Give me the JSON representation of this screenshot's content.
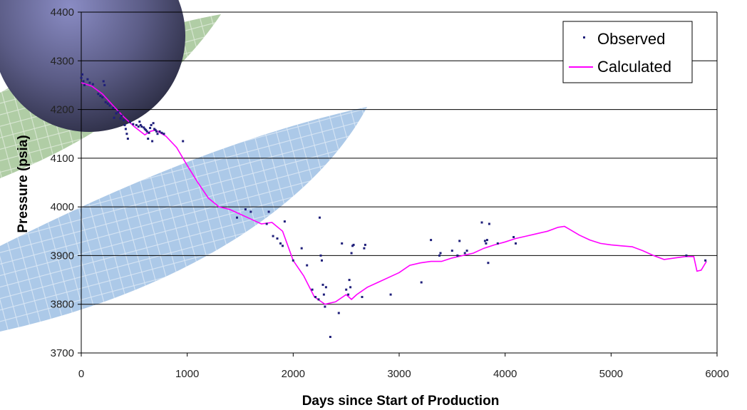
{
  "chart_data": {
    "type": "scatter",
    "title": "",
    "xlabel": "Days since Start of Production",
    "ylabel": "Pressure (psia)",
    "xlim": [
      0,
      6000
    ],
    "ylim": [
      3700,
      4400
    ],
    "xticks": [
      "0",
      "1000",
      "2000",
      "3000",
      "4000",
      "5000",
      "6000"
    ],
    "yticks": [
      "3700",
      "3800",
      "3900",
      "4000",
      "4100",
      "4200",
      "4300",
      "4400"
    ],
    "grid": "horizontal",
    "legend_position": "top-right",
    "series": [
      {
        "name": "Observed",
        "kind": "scatter",
        "color": "#1f1f7a",
        "points": [
          [
            0,
            4265
          ],
          [
            10,
            4272
          ],
          [
            20,
            4258
          ],
          [
            30,
            4250
          ],
          [
            60,
            4262
          ],
          [
            80,
            4255
          ],
          [
            110,
            4252
          ],
          [
            160,
            4232
          ],
          [
            180,
            4228
          ],
          [
            200,
            4225
          ],
          [
            210,
            4258
          ],
          [
            220,
            4250
          ],
          [
            230,
            4215
          ],
          [
            250,
            4212
          ],
          [
            270,
            4208
          ],
          [
            300,
            4203
          ],
          [
            310,
            4183
          ],
          [
            330,
            4192
          ],
          [
            350,
            4195
          ],
          [
            370,
            4182
          ],
          [
            380,
            4187
          ],
          [
            400,
            4178
          ],
          [
            410,
            4168
          ],
          [
            420,
            4160
          ],
          [
            430,
            4150
          ],
          [
            440,
            4140
          ],
          [
            460,
            4174
          ],
          [
            490,
            4170
          ],
          [
            520,
            4168
          ],
          [
            540,
            4165
          ],
          [
            550,
            4175
          ],
          [
            560,
            4168
          ],
          [
            570,
            4165
          ],
          [
            590,
            4163
          ],
          [
            600,
            4160
          ],
          [
            610,
            4158
          ],
          [
            620,
            4155
          ],
          [
            630,
            4140
          ],
          [
            640,
            4152
          ],
          [
            650,
            4162
          ],
          [
            660,
            4168
          ],
          [
            670,
            4135
          ],
          [
            680,
            4172
          ],
          [
            690,
            4160
          ],
          [
            700,
            4158
          ],
          [
            710,
            4155
          ],
          [
            720,
            4150
          ],
          [
            740,
            4155
          ],
          [
            760,
            4152
          ],
          [
            780,
            4150
          ],
          [
            960,
            4135
          ],
          [
            1470,
            3978
          ],
          [
            1550,
            3995
          ],
          [
            1600,
            3990
          ],
          [
            1750,
            3965
          ],
          [
            1770,
            3990
          ],
          [
            1810,
            3940
          ],
          [
            1850,
            3935
          ],
          [
            1880,
            3925
          ],
          [
            1900,
            3920
          ],
          [
            1920,
            3970
          ],
          [
            2000,
            3890
          ],
          [
            2080,
            3915
          ],
          [
            2130,
            3880
          ],
          [
            2180,
            3830
          ],
          [
            2210,
            3815
          ],
          [
            2240,
            3810
          ],
          [
            2250,
            3978
          ],
          [
            2260,
            3900
          ],
          [
            2270,
            3890
          ],
          [
            2280,
            3840
          ],
          [
            2290,
            3820
          ],
          [
            2300,
            3795
          ],
          [
            2310,
            3835
          ],
          [
            2350,
            3733
          ],
          [
            2430,
            3782
          ],
          [
            2460,
            3925
          ],
          [
            2500,
            3830
          ],
          [
            2520,
            3820
          ],
          [
            2530,
            3850
          ],
          [
            2540,
            3835
          ],
          [
            2550,
            3905
          ],
          [
            2560,
            3920
          ],
          [
            2570,
            3922
          ],
          [
            2650,
            3815
          ],
          [
            2670,
            3915
          ],
          [
            2680,
            3922
          ],
          [
            2920,
            3820
          ],
          [
            3210,
            3845
          ],
          [
            3300,
            3932
          ],
          [
            3380,
            3900
          ],
          [
            3390,
            3905
          ],
          [
            3500,
            3910
          ],
          [
            3550,
            3900
          ],
          [
            3570,
            3930
          ],
          [
            3620,
            3905
          ],
          [
            3640,
            3910
          ],
          [
            3780,
            3968
          ],
          [
            3810,
            3930
          ],
          [
            3820,
            3925
          ],
          [
            3830,
            3932
          ],
          [
            3840,
            3885
          ],
          [
            3850,
            3965
          ],
          [
            3930,
            3925
          ],
          [
            4080,
            3938
          ],
          [
            4100,
            3925
          ],
          [
            5710,
            3900
          ],
          [
            5890,
            3890
          ]
        ]
      },
      {
        "name": "Calculated",
        "kind": "line",
        "color": "#ff00ff",
        "points": [
          [
            0,
            4255
          ],
          [
            100,
            4248
          ],
          [
            200,
            4232
          ],
          [
            300,
            4208
          ],
          [
            400,
            4185
          ],
          [
            500,
            4165
          ],
          [
            600,
            4148
          ],
          [
            650,
            4155
          ],
          [
            700,
            4158
          ],
          [
            800,
            4145
          ],
          [
            900,
            4122
          ],
          [
            1000,
            4085
          ],
          [
            1100,
            4050
          ],
          [
            1200,
            4018
          ],
          [
            1300,
            4000
          ],
          [
            1400,
            3995
          ],
          [
            1500,
            3985
          ],
          [
            1600,
            3975
          ],
          [
            1700,
            3965
          ],
          [
            1800,
            3968
          ],
          [
            1900,
            3950
          ],
          [
            2000,
            3890
          ],
          [
            2100,
            3858
          ],
          [
            2200,
            3815
          ],
          [
            2300,
            3800
          ],
          [
            2400,
            3805
          ],
          [
            2500,
            3820
          ],
          [
            2550,
            3810
          ],
          [
            2600,
            3820
          ],
          [
            2700,
            3835
          ],
          [
            2800,
            3845
          ],
          [
            2900,
            3855
          ],
          [
            3000,
            3865
          ],
          [
            3100,
            3880
          ],
          [
            3200,
            3885
          ],
          [
            3300,
            3888
          ],
          [
            3400,
            3888
          ],
          [
            3500,
            3895
          ],
          [
            3600,
            3900
          ],
          [
            3700,
            3905
          ],
          [
            3800,
            3915
          ],
          [
            3900,
            3922
          ],
          [
            4000,
            3928
          ],
          [
            4100,
            3935
          ],
          [
            4200,
            3940
          ],
          [
            4300,
            3945
          ],
          [
            4400,
            3950
          ],
          [
            4500,
            3958
          ],
          [
            4560,
            3960
          ],
          [
            4600,
            3955
          ],
          [
            4700,
            3942
          ],
          [
            4800,
            3932
          ],
          [
            4900,
            3925
          ],
          [
            5000,
            3922
          ],
          [
            5100,
            3920
          ],
          [
            5200,
            3918
          ],
          [
            5300,
            3910
          ],
          [
            5400,
            3900
          ],
          [
            5500,
            3892
          ],
          [
            5600,
            3895
          ],
          [
            5700,
            3898
          ],
          [
            5780,
            3898
          ],
          [
            5810,
            3868
          ],
          [
            5850,
            3870
          ],
          [
            5900,
            3888
          ]
        ]
      }
    ]
  }
}
